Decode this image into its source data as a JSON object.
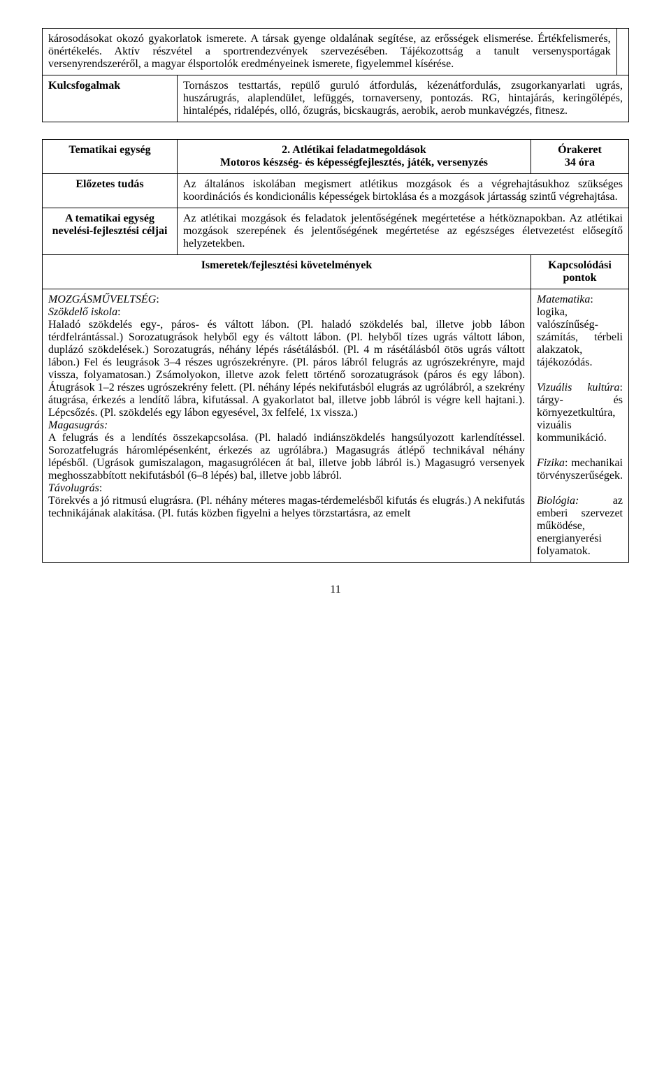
{
  "table1": {
    "row1_left": "károsodásokat okozó gyakorlatok ismerete. A társak gyenge oldalának segítése, az erősségek elismerése. Értékfelismerés, önértékelés. Aktív részvétel a sportrendezvények szervezésében. Tájékozottság a tanult versenysportágak versenyrendszeréről, a magyar élsportolók eredményeinek ismerete, figyelemmel kísérése.",
    "row2_label": "Kulcsfogalmak",
    "row2_text": "Tornászos testtartás, repülő guruló átfordulás, kézenátfordulás, zsugorkanyarlati ugrás, huszárugrás, alaplendület, lefüggés, tornaverseny, pontozás. RG, hintajárás, keringőlépés, hintalépés, ridalépés, olló, őzugrás, bicskaugrás, aerobik, aerob munkavégzés, fitnesz."
  },
  "table2": {
    "r1c1": "Tematikai egység",
    "r1c2_line1": "2. Atlétikai feladatmegoldások",
    "r1c2_line2": "Motoros készség- és képességfejlesztés, játék, versenyzés",
    "r1c3_line1": "Órakeret",
    "r1c3_line2": "34 óra",
    "r2c1": "Előzetes tudás",
    "r2c2": "Az általános iskolában megismert atlétikus mozgások és a végrehajtásukhoz szükséges koordinációs és kondicionális képességek birtoklása és a mozgások jártasság szintű végrehajtása.",
    "r3c1": "A tematikai egység nevelési-fejlesztési céljai",
    "r3c2": "Az atlétikai mozgások és feladatok jelentőségének megértetése a hétköznapokban. Az atlétikai mozgások szerepének és jelentőségének megértetése az egészséges életvezetést elősegítő helyzetekben.",
    "r4c1": "Ismeretek/fejlesztési követelmények",
    "r4c2": "Kapcsolódási pontok",
    "r5c1_mozgas": "MOZGÁSMŰVELTSÉG",
    "r5c1_szokdelo": "Szökdelő iskola",
    "r5c1_p1": "Haladó szökdelés egy-, páros- és váltott lábon. (Pl. haladó szökdelés bal, illetve jobb lábon térdfelrántással.) Sorozatugrások helyből egy és váltott lábon. (Pl. helyből tízes ugrás váltott lábon, duplázó szökdelések.) Sorozatugrás, néhány lépés rásétálásból. (Pl. 4 m rásétálásból ötös ugrás váltott lábon.) Fel és leugrások 3–4 részes ugrószekrényre. (Pl. páros lábról felugrás az ugrószekrényre, majd vissza, folyamatosan.) Zsámolyokon, illetve azok felett történő sorozatugrások (páros és egy lábon). Átugrások 1–2 részes ugrószekrény felett. (Pl. néhány lépés nekifutásból elugrás az ugrólábról, a szekrény átugrása, érkezés a lendítő lábra, kifutással. A gyakorlatot bal, illetve jobb lábról is végre kell hajtani.). Lépcsőzés. (Pl. szökdelés egy lábon egyesével, 3x felfelé, 1x vissza.)",
    "r5c1_magas": "Magasugrás:",
    "r5c1_p2": "A felugrás és a lendítés összekapcsolása. (Pl. haladó indiánszökdelés hangsúlyozott karlendítéssel. Sorozatfelugrás háromlépésenként, érkezés az ugrólábra.) Magasugrás átlépő technikával néhány lépésből. (Ugrások gumiszalagon, magasugrólécen át bal, illetve jobb lábról is.) Magasugró versenyek meghosszabbított nekifutásból (6–8 lépés) bal, illetve jobb lábról.",
    "r5c1_tavol": "Távolugrás",
    "r5c1_p3": "Törekvés a jó ritmusú elugrásra. (Pl. néhány méteres magas-térdemelésből kifutás és elugrás.) A nekifutás technikájának alakítása. (Pl. futás közben figyelni a helyes törzstartásra, az emelt",
    "r5c2_mat_label": "Matematika",
    "r5c2_mat": ": logika, valószínűség-számítás, térbeli alakzatok, tájékozódás.",
    "r5c2_viz_label": "Vizuális kultúra",
    "r5c2_viz": ": tárgy- és környezetkultúra, vizuális kommunikáció.",
    "r5c2_fiz_label": "Fizika",
    "r5c2_fiz": ": mechanikai törvényszerűségek.",
    "r5c2_bio_label": "Biológia:",
    "r5c2_bio": " az emberi szervezet működése, energianyerési folyamatok."
  },
  "page_number": "11"
}
